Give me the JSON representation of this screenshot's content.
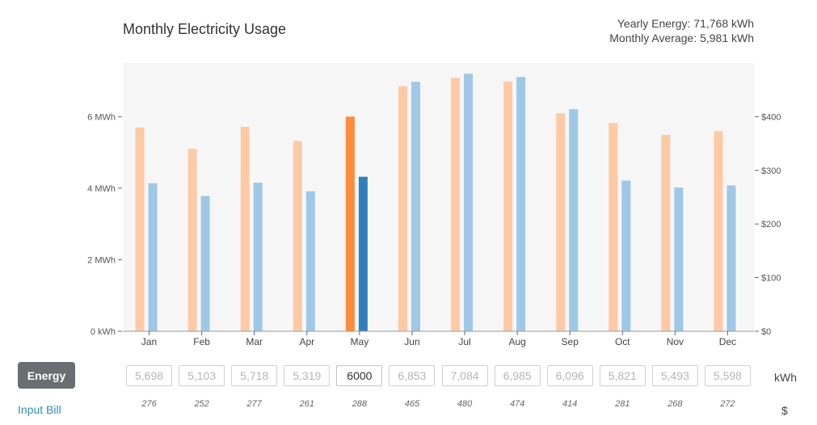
{
  "header": {
    "title": "Monthly Electricity Usage",
    "yearly": "Yearly Energy: 71,768 kWh",
    "monthly_avg": "Monthly Average: 5,981 kWh"
  },
  "controls": {
    "energy_label": "Energy",
    "input_bill_label": "Input Bill",
    "kwh_unit": "kWh",
    "usd_unit": "$"
  },
  "chart_data": {
    "type": "bar",
    "categories": [
      "Jan",
      "Feb",
      "Mar",
      "Apr",
      "May",
      "Jun",
      "Jul",
      "Aug",
      "Sep",
      "Oct",
      "Nov",
      "Dec"
    ],
    "series": [
      {
        "values": [
          5698,
          5103,
          5718,
          5319,
          6000,
          6853,
          7084,
          6985,
          6096,
          5821,
          5493,
          5598
        ],
        "color": "#fdcaa5",
        "highlight_color": "#fd8b3a",
        "axis": "left"
      },
      {
        "values": [
          276,
          252,
          277,
          261,
          288,
          465,
          480,
          474,
          414,
          281,
          268,
          272
        ],
        "color": "#9fc8e6",
        "highlight_color": "#2f7fbd",
        "axis": "right"
      }
    ],
    "highlight_index": 4,
    "left_axis": {
      "ticks": [
        0,
        2000,
        4000,
        6000
      ],
      "tick_labels": [
        "0 kWh",
        "2 MWh",
        "4 MWh",
        "6 MWh"
      ]
    },
    "right_axis": {
      "ticks": [
        0,
        100,
        200,
        300,
        400
      ],
      "tick_labels": [
        "$0",
        "$100",
        "$200",
        "$300",
        "$400"
      ]
    },
    "left_ylim": [
      0,
      7500
    ],
    "right_ylim": [
      0,
      500
    ]
  },
  "inputs": {
    "kwh": [
      "5,698",
      "5,103",
      "5,718",
      "5,319",
      "6000",
      "6,853",
      "7,084",
      "6,985",
      "6,096",
      "5,821",
      "5,493",
      "5,598"
    ],
    "costs": [
      "276",
      "252",
      "277",
      "261",
      "288",
      "465",
      "480",
      "474",
      "414",
      "281",
      "268",
      "272"
    ],
    "active_index": 4
  }
}
